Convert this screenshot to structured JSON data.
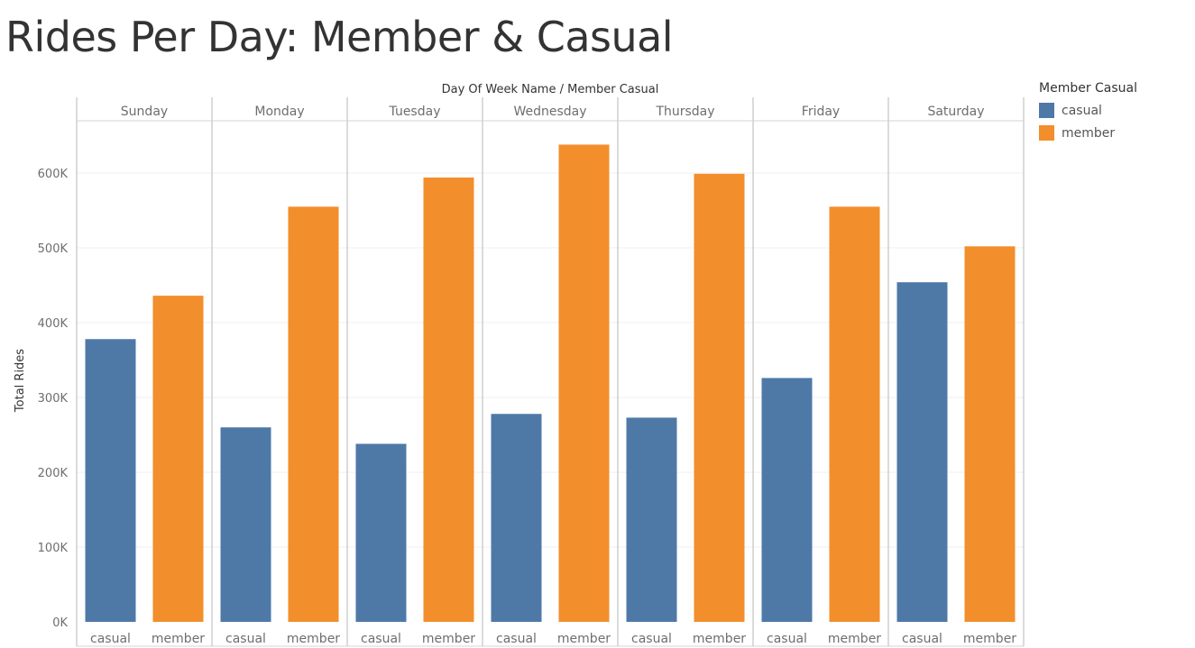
{
  "title": "Rides Per Day: Member & Casual",
  "chart_data": {
    "type": "bar",
    "title": "Rides Per Day: Member & Casual",
    "column_header": "Day Of Week Name  /  Member Casual",
    "ylabel": "Total Rides",
    "ylim": [
      0,
      660000
    ],
    "yticks": [
      0,
      100000,
      200000,
      300000,
      400000,
      500000,
      600000
    ],
    "ytick_labels": [
      "0K",
      "100K",
      "200K",
      "300K",
      "400K",
      "500K",
      "600K"
    ],
    "categories": [
      "Sunday",
      "Monday",
      "Tuesday",
      "Wednesday",
      "Thursday",
      "Friday",
      "Saturday"
    ],
    "subcategories": [
      "casual",
      "member"
    ],
    "series": [
      {
        "name": "casual",
        "color": "#4e79a7",
        "values": [
          378000,
          260000,
          238000,
          278000,
          273000,
          326000,
          454000
        ]
      },
      {
        "name": "member",
        "color": "#f28e2b",
        "values": [
          436000,
          555000,
          594000,
          638000,
          599000,
          555000,
          502000
        ]
      }
    ],
    "grid": true,
    "legend": {
      "title": "Member Casual",
      "placement": "right"
    }
  }
}
